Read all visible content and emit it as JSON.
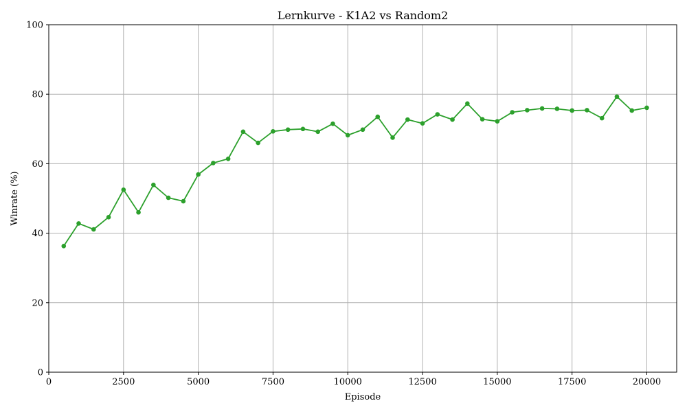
{
  "chart_data": {
    "type": "line",
    "title": "Lernkurve - K1A2 vs Random2",
    "xlabel": "Episode",
    "ylabel": "Winrate (%)",
    "xlim": [
      0,
      21000
    ],
    "ylim": [
      0,
      100
    ],
    "xticks": [
      0,
      2500,
      5000,
      7500,
      10000,
      12500,
      15000,
      17500,
      20000
    ],
    "yticks": [
      0,
      20,
      40,
      60,
      80,
      100
    ],
    "grid": true,
    "color": "#2ca02c",
    "x": [
      500,
      1000,
      1500,
      2000,
      2500,
      3000,
      3500,
      4000,
      4500,
      5000,
      5500,
      6000,
      6500,
      7000,
      7500,
      8000,
      8500,
      9000,
      9500,
      10000,
      10500,
      11000,
      11500,
      12000,
      12500,
      13000,
      13500,
      14000,
      14500,
      15000,
      15500,
      16000,
      16500,
      17000,
      17500,
      18000,
      18500,
      19000,
      19500,
      20000
    ],
    "values": [
      36.3,
      42.8,
      41.1,
      44.6,
      52.5,
      46.0,
      53.9,
      50.2,
      49.2,
      56.9,
      60.2,
      61.4,
      69.2,
      66.0,
      69.3,
      69.8,
      70.0,
      69.2,
      71.5,
      68.2,
      69.8,
      73.5,
      67.5,
      72.7,
      71.6,
      74.2,
      72.7,
      77.3,
      72.8,
      72.2,
      74.8,
      75.4,
      75.9,
      75.8,
      75.3,
      75.4,
      73.1,
      79.3,
      75.3,
      76.1
    ]
  }
}
